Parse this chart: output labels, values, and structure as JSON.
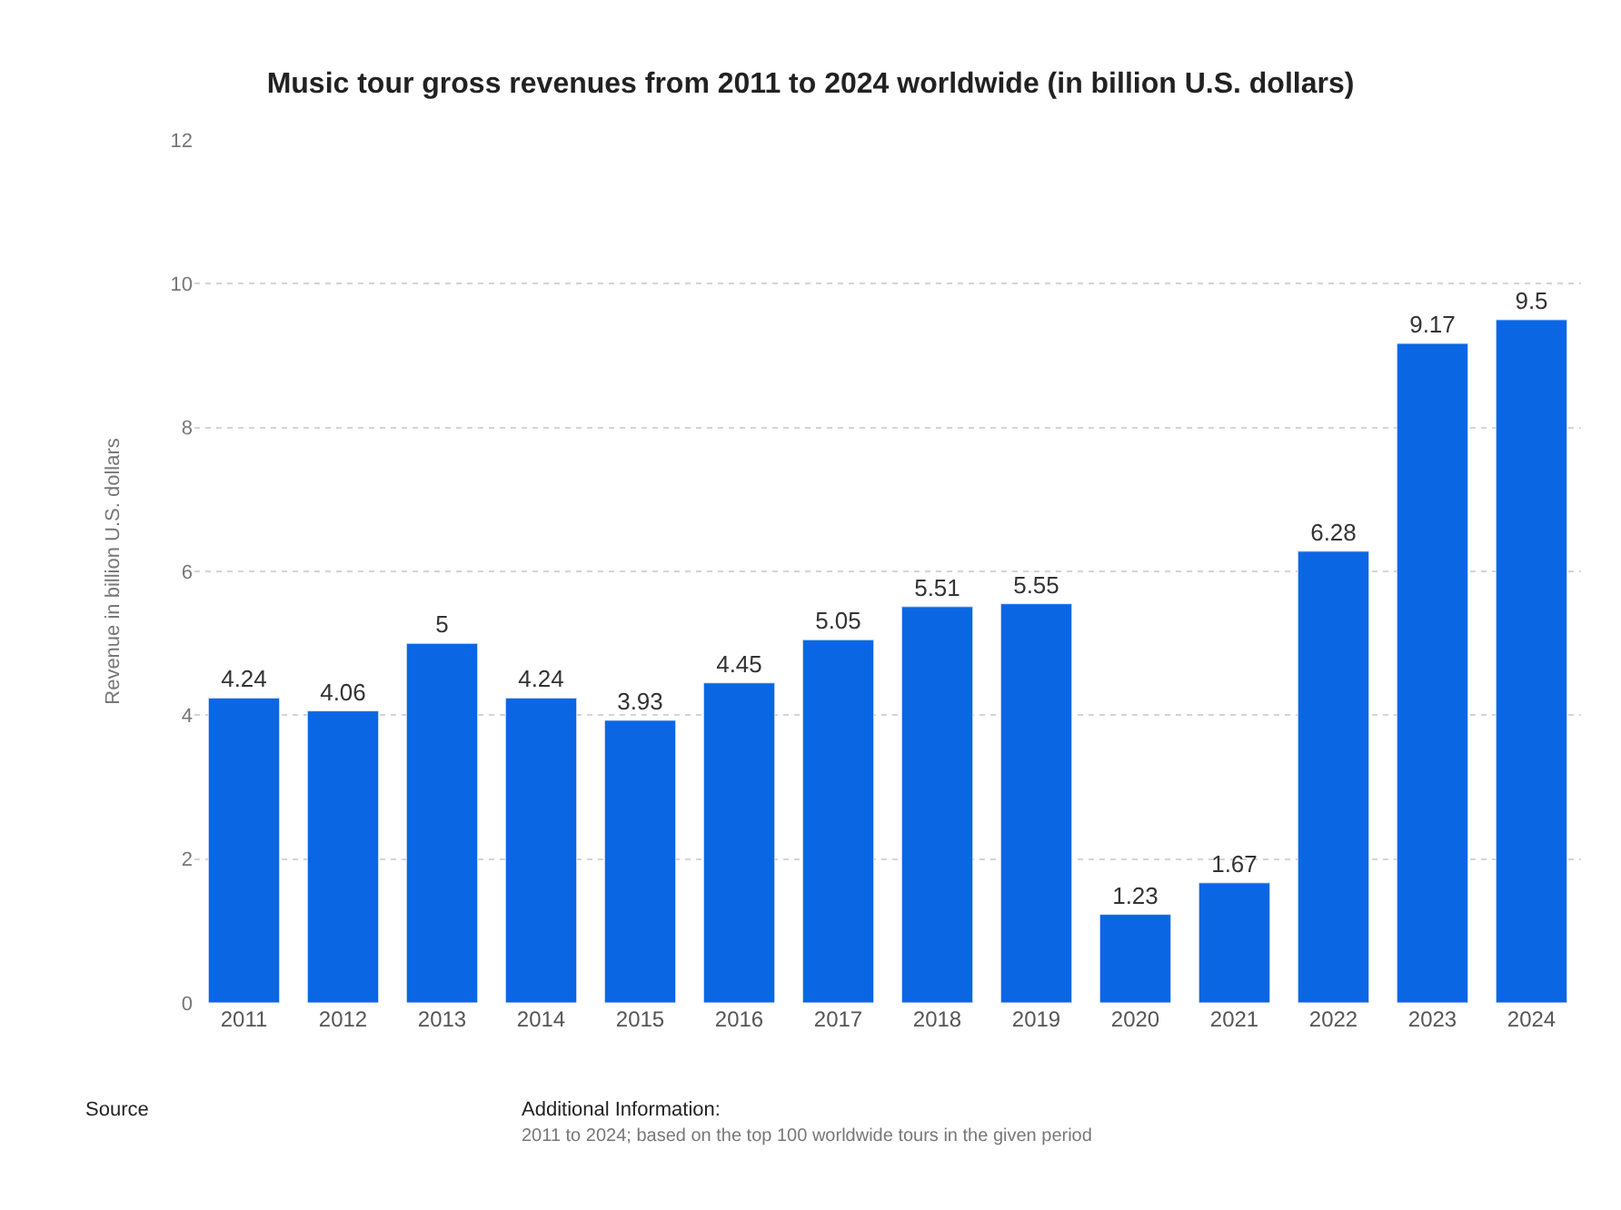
{
  "chart_data": {
    "type": "bar",
    "title": "Music tour gross revenues from 2011 to 2024 worldwide (in billion U.S. dollars)",
    "ylabel": "Revenue in billion U.S. dollars",
    "categories": [
      "2011",
      "2012",
      "2013",
      "2014",
      "2015",
      "2016",
      "2017",
      "2018",
      "2019",
      "2020",
      "2021",
      "2022",
      "2023",
      "2024"
    ],
    "values": [
      4.24,
      4.06,
      5,
      4.24,
      3.93,
      4.45,
      5.05,
      5.51,
      5.55,
      1.23,
      1.67,
      6.28,
      9.17,
      9.5
    ],
    "color": "#0b66e4",
    "ylim": [
      0,
      12
    ],
    "yticks": [
      0,
      2,
      4,
      6,
      8,
      10,
      12
    ],
    "grid": "y",
    "data_labels": true,
    "annotations": [
      "Source",
      "Additional Information:",
      "2011 to 2024; based on the top 100 worldwide tours in the given period"
    ]
  }
}
